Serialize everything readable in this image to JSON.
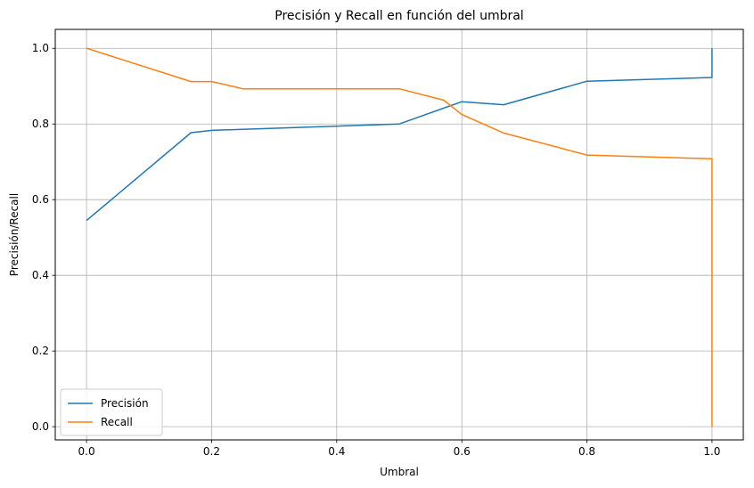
{
  "chart_data": {
    "type": "line",
    "title": "Precisión y Recall en función del umbral",
    "xlabel": "Umbral",
    "ylabel": "Precisión/Recall",
    "xlim": [
      -0.05,
      1.05
    ],
    "ylim": [
      -0.035,
      1.05
    ],
    "xticks": [
      0.0,
      0.2,
      0.4,
      0.6,
      0.8,
      1.0
    ],
    "xtick_labels": [
      "0.0",
      "0.2",
      "0.4",
      "0.6",
      "0.8",
      "1.0"
    ],
    "yticks": [
      0.0,
      0.2,
      0.4,
      0.6,
      0.8,
      1.0
    ],
    "ytick_labels": [
      "0.0",
      "0.2",
      "0.4",
      "0.6",
      "0.8",
      "1.0"
    ],
    "grid": true,
    "legend_position": "lower left",
    "series": [
      {
        "name": "Precisión",
        "color": "#1f77b4",
        "points": [
          [
            0.0,
            0.545
          ],
          [
            0.167,
            0.777
          ],
          [
            0.2,
            0.783
          ],
          [
            0.5,
            0.8
          ],
          [
            0.6,
            0.859
          ],
          [
            0.667,
            0.851
          ],
          [
            0.8,
            0.913
          ],
          [
            1.0,
            0.923
          ],
          [
            1.0,
            1.0
          ]
        ]
      },
      {
        "name": "Recall",
        "color": "#ff7f0e",
        "points": [
          [
            0.0,
            1.0
          ],
          [
            0.167,
            0.912
          ],
          [
            0.2,
            0.912
          ],
          [
            0.25,
            0.893
          ],
          [
            0.5,
            0.893
          ],
          [
            0.571,
            0.863
          ],
          [
            0.6,
            0.825
          ],
          [
            0.667,
            0.776
          ],
          [
            0.8,
            0.718
          ],
          [
            1.0,
            0.708
          ],
          [
            1.0,
            0.0
          ]
        ]
      }
    ]
  }
}
